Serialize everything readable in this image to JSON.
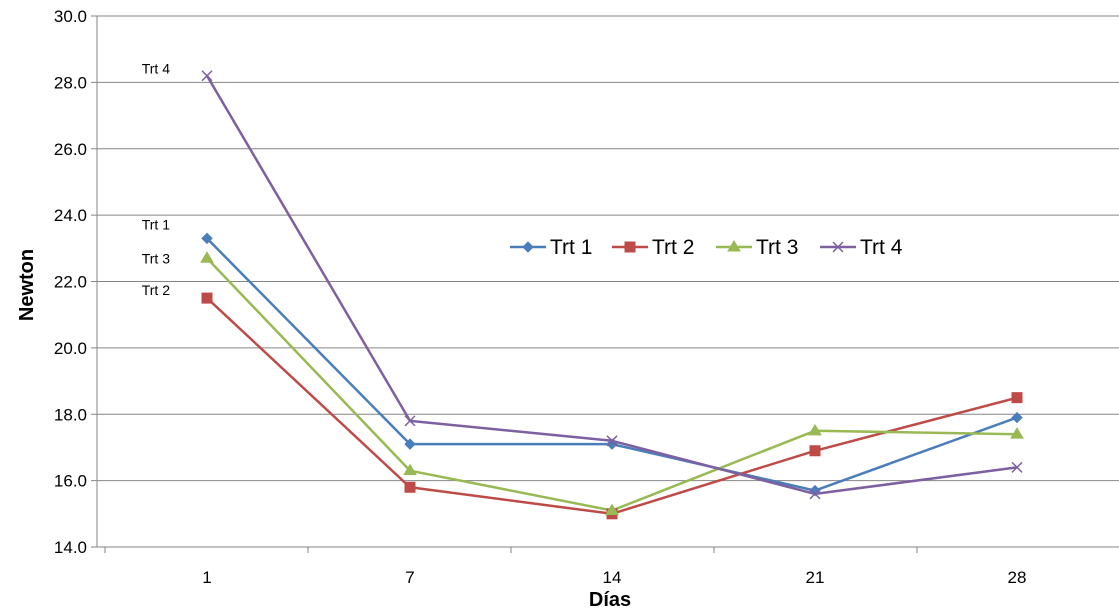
{
  "chart_data": {
    "type": "line",
    "title": "",
    "xlabel": "Días",
    "ylabel": "Newton",
    "categories": [
      "1",
      "7",
      "14",
      "21",
      "28"
    ],
    "ylim": [
      14.0,
      30.0
    ],
    "yticks": [
      "14.0",
      "16.0",
      "18.0",
      "20.0",
      "22.0",
      "24.0",
      "26.0",
      "28.0",
      "30.0"
    ],
    "grid": "horizontal",
    "legend_position": "center-right",
    "series": [
      {
        "name": "Trt 1",
        "values": [
          23.3,
          17.1,
          17.1,
          15.7,
          17.9
        ],
        "color": "#4a7ebb",
        "marker": "diamond"
      },
      {
        "name": "Trt 2",
        "values": [
          21.5,
          15.8,
          15.0,
          16.9,
          18.5
        ],
        "color": "#be4b48",
        "marker": "square"
      },
      {
        "name": "Trt 3",
        "values": [
          22.7,
          16.3,
          15.1,
          17.5,
          17.4
        ],
        "color": "#98b954",
        "marker": "triangle"
      },
      {
        "name": "Trt 4",
        "values": [
          28.2,
          17.8,
          17.2,
          15.6,
          16.4
        ],
        "color": "#7d60a0",
        "marker": "x"
      }
    ],
    "annotations": [
      {
        "text": "Trt 4",
        "series": "Trt 4",
        "category": "1"
      },
      {
        "text": "Trt 1",
        "series": "Trt 1",
        "category": "1"
      },
      {
        "text": "Trt 3",
        "series": "Trt 3",
        "category": "1"
      },
      {
        "text": "Trt 2",
        "series": "Trt 2",
        "category": "1"
      }
    ]
  }
}
